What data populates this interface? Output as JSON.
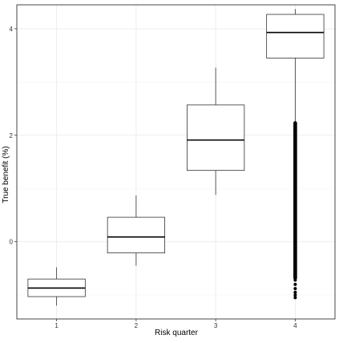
{
  "chart_data": {
    "type": "box",
    "title": "",
    "xlabel": "Risk quarter",
    "ylabel": "True benefit (%)",
    "categories": [
      "1",
      "2",
      "3",
      "4"
    ],
    "ylim": [
      -1.45,
      4.45
    ],
    "y_ticks": [
      0,
      2,
      4
    ],
    "y_tick_labels": [
      "0",
      "2",
      "4"
    ],
    "grid": true,
    "legend": "none",
    "boxes": [
      {
        "category": "1",
        "whisker_low": -1.2,
        "q1": -1.03,
        "median": -0.87,
        "q3": -0.7,
        "whisker_high": -0.48
      },
      {
        "category": "2",
        "whisker_low": -0.45,
        "q1": -0.21,
        "median": 0.09,
        "q3": 0.46,
        "whisker_high": 0.87
      },
      {
        "category": "3",
        "whisker_low": 0.88,
        "q1": 1.34,
        "median": 1.91,
        "q3": 2.57,
        "whisker_high": 3.27
      },
      {
        "category": "4",
        "whisker_low": 2.25,
        "q1": 3.45,
        "median": 3.93,
        "q3": 4.27,
        "whisker_high": 4.37,
        "outliers_range": [
          -1.05,
          2.23
        ],
        "outliers_sample": [
          -1.05,
          -1.0,
          -0.95,
          -0.88,
          -0.8,
          -0.72,
          -0.68
        ]
      }
    ],
    "colors": {
      "box_fill": "#ffffff",
      "box_stroke": "#333333",
      "grid_major": "#ebebeb",
      "grid_minor": "#f5f5f5",
      "panel_border": "#333333",
      "outlier": "#000000"
    }
  }
}
